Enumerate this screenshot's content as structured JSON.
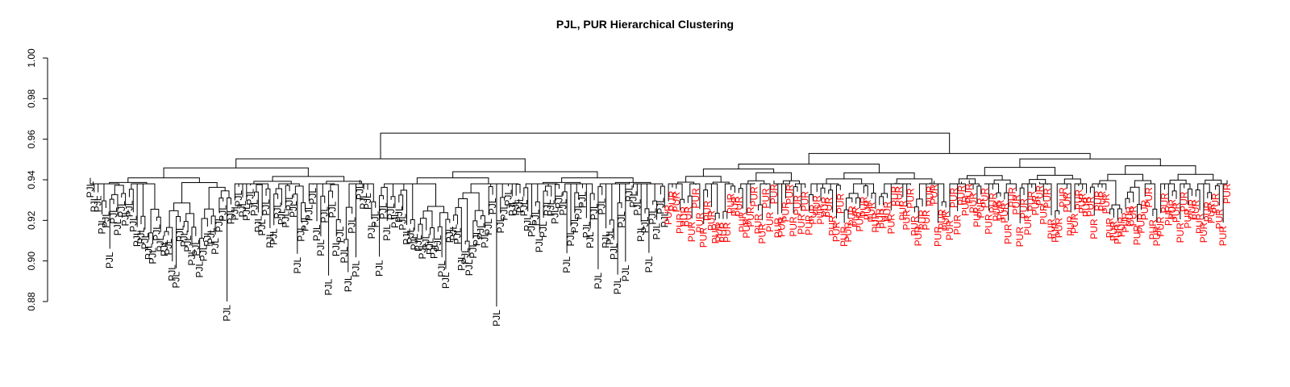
{
  "chart_data": {
    "type": "dendrogram",
    "title": "PJL, PUR Hierarchical Clustering",
    "ylabel": "",
    "xlabel": "",
    "ylim": [
      0.88,
      1.0
    ],
    "yticks": [
      "0.88",
      "0.90",
      "0.92",
      "0.94",
      "0.96",
      "0.98",
      "1.00"
    ],
    "group_colors": {
      "PJL": "#000000",
      "PUR": "#ff0000"
    },
    "groups": [
      {
        "name": "PJL",
        "leaf_count": 148
      },
      {
        "name": "PUR",
        "leaf_count": 144
      }
    ],
    "root_merge_height": 0.963,
    "subtree_merge_heights": {
      "PJL": 0.952,
      "PUR": 0.957
    },
    "tight_pairs": [
      {
        "group": "PJL",
        "height": 0.91
      },
      {
        "group": "PJL",
        "height": 0.897
      },
      {
        "group": "PJL",
        "height": 0.904
      },
      {
        "group": "PJL",
        "height": 0.914
      },
      {
        "group": "PJL",
        "height": 0.905
      },
      {
        "group": "PUR",
        "height": 0.929
      }
    ],
    "leaf_label_heights": [
      0.94,
      0.935,
      0.933,
      0.92,
      0.925,
      0.905,
      0.93,
      0.92,
      0.93,
      0.925,
      0.93,
      0.925,
      0.915,
      0.92,
      0.915,
      0.912,
      0.91,
      0.918,
      0.912,
      0.91,
      0.915,
      0.9,
      0.895,
      0.92,
      0.918,
      0.915,
      0.905,
      0.91,
      0.902,
      0.91,
      0.915,
      0.92,
      0.915,
      0.925,
      0.93,
      0.88,
      0.925,
      0.93,
      0.935,
      0.933,
      0.93,
      0.935,
      0.93,
      0.925,
      0.922,
      0.93,
      0.915,
      0.92,
      0.93,
      0.93,
      0.925,
      0.935,
      0.93,
      0.905,
      0.92,
      0.925,
      0.93,
      0.935,
      0.92,
      0.915,
      0.93,
      0.895,
      0.93,
      0.915,
      0.92,
      0.91,
      0.895,
      0.925,
      0.9
    ]
  }
}
